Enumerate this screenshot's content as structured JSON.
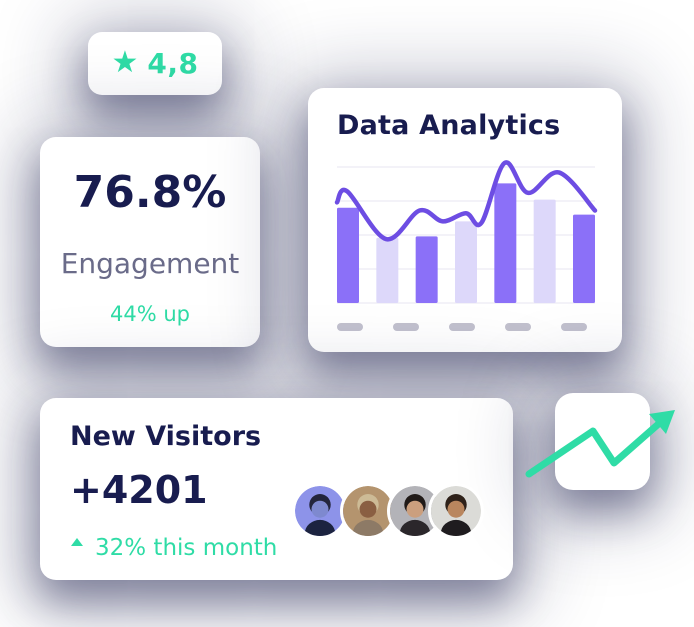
{
  "colors": {
    "navy": "#181c4f",
    "green": "#2fdca6",
    "muted": "#6a6b89",
    "purple_solid": "#8b70f8",
    "purple_light": "#ddd8fa",
    "purple_line": "#6d4de3",
    "grid": "#efedf6",
    "axis_dash": "#c2c1ce"
  },
  "rating_card": {
    "icon": "star-icon",
    "value": "4,8"
  },
  "engagement_card": {
    "value": "76.8%",
    "label": "Engagement",
    "delta": "44% up"
  },
  "analytics_card": {
    "title": "Data Analytics"
  },
  "chart_data": {
    "type": "bar",
    "title": "Data Analytics",
    "categories": [
      "",
      "",
      "",
      "",
      "",
      "",
      ""
    ],
    "series": [
      {
        "name": "bars",
        "type": "bar",
        "values": [
          70,
          48,
          49,
          60,
          88,
          76,
          65
        ],
        "unit": "percent of y-axis",
        "color_pattern": [
          "#8b70f8",
          "#ddd8fa"
        ]
      },
      {
        "name": "trend-line",
        "type": "line",
        "color": "#6d4de3",
        "points_pct": [
          [
            0,
            74
          ],
          [
            4,
            82
          ],
          [
            19,
            47
          ],
          [
            32,
            68
          ],
          [
            41,
            60
          ],
          [
            50,
            66
          ],
          [
            56,
            59
          ],
          [
            65,
            103
          ],
          [
            74,
            81
          ],
          [
            86,
            96
          ],
          [
            100,
            68
          ]
        ]
      }
    ],
    "ylim": [
      0,
      100
    ],
    "grid": {
      "horizontal_lines": 5,
      "vertical_lines": 0
    },
    "x_axis": {
      "tick_style": "gray-dash-placeholders",
      "count": 5
    },
    "axis_tick_labels_visible": false,
    "legend": "none"
  },
  "visitors_card": {
    "title": "New Visitors",
    "count": "+4201",
    "delta_icon": "triangle-up-icon",
    "delta": "32% this month",
    "avatars": [
      {
        "name": "avatar-1",
        "bg": "#8d93e9",
        "skin": "#7e89cf",
        "hair": "#23253c",
        "shirt": "#1c2340"
      },
      {
        "name": "avatar-2",
        "bg": "#b4946e",
        "skin": "#8a5f42",
        "hair": "#cdbb96",
        "shirt": "#8d7a66"
      },
      {
        "name": "avatar-3",
        "bg": "#b3b3b8",
        "skin": "#cb9f7e",
        "hair": "#201a18",
        "shirt": "#2b272b"
      },
      {
        "name": "avatar-4",
        "bg": "#dbdbd7",
        "skin": "#b9865e",
        "hair": "#2e2119",
        "shirt": "#1f1c1f"
      }
    ]
  },
  "trend_card": {
    "icon": "trend-up-arrow-icon",
    "arrow_color": "#2fdca6",
    "arrow_points": [
      [
        24,
        89
      ],
      [
        88,
        46
      ],
      [
        109,
        78
      ],
      [
        158,
        35
      ]
    ],
    "arrow_head": [
      [
        170,
        25
      ],
      [
        161,
        49
      ],
      [
        144,
        29
      ]
    ]
  }
}
